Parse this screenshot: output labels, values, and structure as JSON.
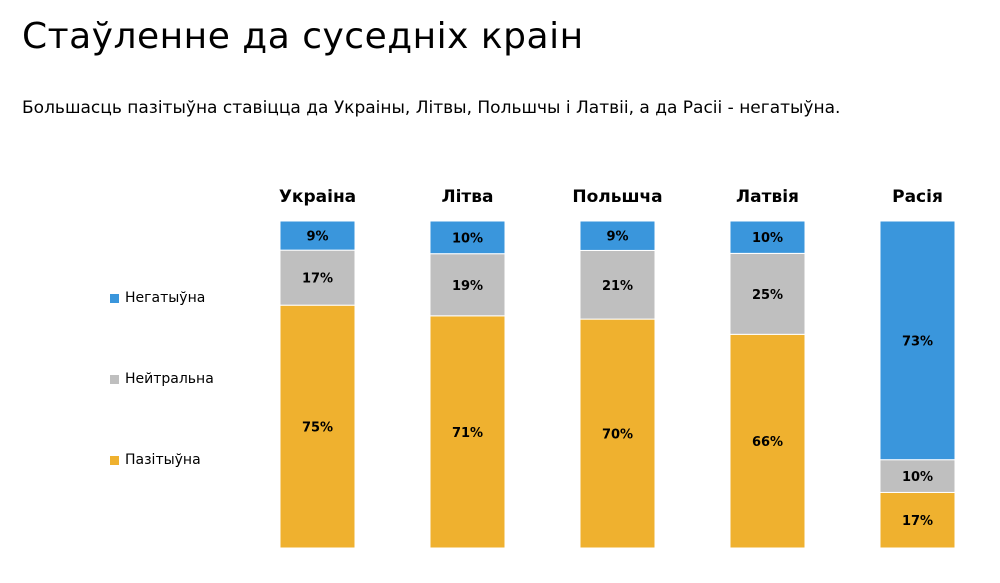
{
  "title": "Стаўленне да суседніх краін",
  "subtitle": "Большасць пазітыўна ставіцца да Украіны, Літвы, Польшчы і Латвіі, а да Расіі - негатыўна.",
  "chart_data": {
    "type": "bar",
    "stacked": true,
    "normalized_percent": true,
    "category_labels_position": "top",
    "legend_position": "left",
    "grid": false,
    "categories": [
      "Украіна",
      "Літва",
      "Польшча",
      "Латвія",
      "Расія"
    ],
    "series": [
      {
        "name": "Пазітыўна",
        "color": "#EFB12F",
        "values": [
          75,
          71,
          70,
          66,
          17
        ],
        "labels": [
          "75%",
          "71%",
          "70%",
          "66%",
          "17%"
        ]
      },
      {
        "name": "Нейтральна",
        "color": "#BFBFBF",
        "values": [
          17,
          19,
          21,
          25,
          10
        ],
        "labels": [
          "17%",
          "19%",
          "21%",
          "25%",
          "10%"
        ]
      },
      {
        "name": "Негатыўна",
        "color": "#3A96DC",
        "values": [
          9,
          10,
          9,
          10,
          73
        ],
        "labels": [
          "9%",
          "10%",
          "9%",
          "10%",
          "73%"
        ]
      }
    ]
  }
}
